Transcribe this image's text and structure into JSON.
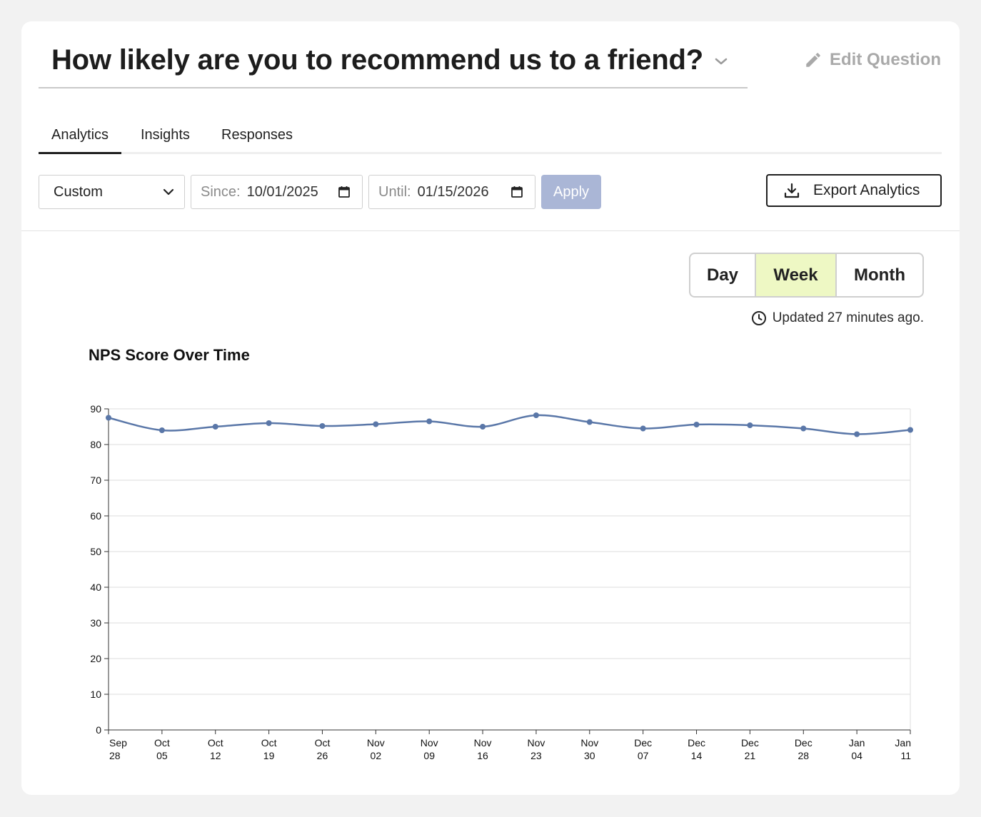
{
  "question": {
    "title": "How likely are you to recommend us to a friend?",
    "edit_label": "Edit Question"
  },
  "tabs": [
    {
      "label": "Analytics"
    },
    {
      "label": "Insights"
    },
    {
      "label": "Responses"
    }
  ],
  "filters": {
    "range_value": "Custom",
    "since_label": "Since:",
    "since_value": "10/01/2025",
    "until_label": "Until:",
    "until_value": "01/15/2026",
    "apply_label": "Apply",
    "export_label": "Export Analytics"
  },
  "granularity": {
    "options": [
      "Day",
      "Week",
      "Month"
    ],
    "selected": "Week"
  },
  "updated_text": "Updated 27 minutes ago.",
  "colors": {
    "line": "#5a77a8",
    "apply": "#aab6d6",
    "selected_seg": "#eef8c4"
  },
  "chart_data": {
    "type": "line",
    "title": "NPS Score Over Time",
    "xlabel": "",
    "ylabel": "",
    "ylim": [
      0,
      90
    ],
    "yticks": [
      0,
      10,
      20,
      30,
      40,
      50,
      60,
      70,
      80,
      90
    ],
    "grid": true,
    "categories": [
      "Sep 28",
      "Oct 05",
      "Oct 12",
      "Oct 19",
      "Oct 26",
      "Nov 02",
      "Nov 09",
      "Nov 16",
      "Nov 23",
      "Nov 30",
      "Dec 07",
      "Dec 14",
      "Dec 21",
      "Dec 28",
      "Jan 04",
      "Jan 11"
    ],
    "series": [
      {
        "values": [
          87.5,
          84,
          85,
          86,
          85.2,
          85.7,
          86.5,
          85,
          88.2,
          86.3,
          84.5,
          85.6,
          85.4,
          84.5,
          82.9,
          84.1
        ]
      }
    ]
  }
}
